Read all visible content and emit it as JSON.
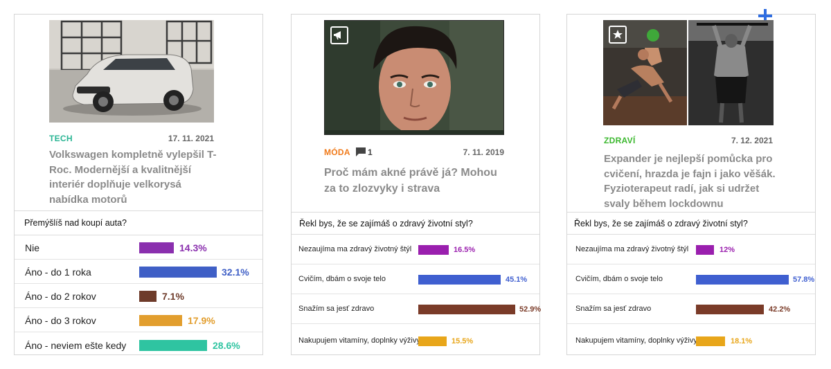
{
  "cards": [
    {
      "category": "TECH",
      "category_color": "#2bb594",
      "date": "17. 11. 2021",
      "title": "Volkswagen kompletně vylepšil T-Roc. Modernější a kvalitnější interiér doplňuje velkorysá nabídka motorů",
      "image": "car-photo",
      "poll": {
        "question": "Přemýšlíš nad koupí auta?",
        "options": [
          {
            "label": "Nie",
            "percent": "14.3%",
            "value": 14.3,
            "color": "#8a2fae"
          },
          {
            "label": "Áno - do 1 roka",
            "percent": "32.1%",
            "value": 32.1,
            "color": "#3f5fc6"
          },
          {
            "label": "Áno - do 2 rokov",
            "percent": "7.1%",
            "value": 7.1,
            "color": "#6e3b2a"
          },
          {
            "label": "Áno - do 3 rokov",
            "percent": "17.9%",
            "value": 17.9,
            "color": "#e29e2e"
          },
          {
            "label": "Áno - neviem ešte kedy",
            "percent": "28.6%",
            "value": 28.6,
            "color": "#2fc4a1"
          }
        ]
      }
    },
    {
      "category": "MÓDA",
      "category_color": "#f07a1a",
      "comments": "1",
      "date": "7. 11. 2019",
      "title": "Proč mám akné právě já? Mohou za to zlozvyky i strava",
      "image": "portrait-photo",
      "image_icon": "megaphone-icon",
      "poll": {
        "question": "Řekl bys, že se zajímáš o zdravý životní styl?",
        "options": [
          {
            "label": "Nezaujíma ma zdravý životný štýl",
            "percent": "16.5%",
            "value": 16.5,
            "color": "#9a1fae"
          },
          {
            "label": "Cvičím, dbám o svoje telo",
            "percent": "45.1%",
            "value": 45.1,
            "color": "#3f5fd0"
          },
          {
            "label": "Snažím sa jesť zdravo",
            "percent": "52.9%",
            "value": 52.9,
            "color": "#7a3b28"
          },
          {
            "label": "Nakupujem vitamíny, doplnky výživy",
            "percent": "15.5%",
            "value": 15.5,
            "color": "#e8a61a"
          }
        ]
      }
    },
    {
      "category": "ZDRAVÍ",
      "category_color": "#3cb82f",
      "date": "7. 12. 2021",
      "title": "Expander je nejlepší pomůcka pro cvičení, hrazda je fajn i jako věšák. Fyzioterapeut radí, jak si udržet svaly během lockdownu",
      "image": "fitness-photo",
      "image_icon": "star-icon",
      "poll": {
        "question": "Řekl bys, že se zajímáš o zdravý životní styl?",
        "options": [
          {
            "label": "Nezaujíma ma zdravý životný štýl",
            "percent": "12%",
            "value": 12,
            "color": "#9a1fae"
          },
          {
            "label": "Cvičím, dbám o svoje telo",
            "percent": "57.8%",
            "value": 57.8,
            "color": "#3f5fd0"
          },
          {
            "label": "Snažím sa jesť zdravo",
            "percent": "42.2%",
            "value": 42.2,
            "color": "#7a3b28"
          },
          {
            "label": "Nakupujem vitamíny, doplnky výživy",
            "percent": "18.1%",
            "value": 18.1,
            "color": "#e8a61a"
          }
        ]
      }
    }
  ]
}
